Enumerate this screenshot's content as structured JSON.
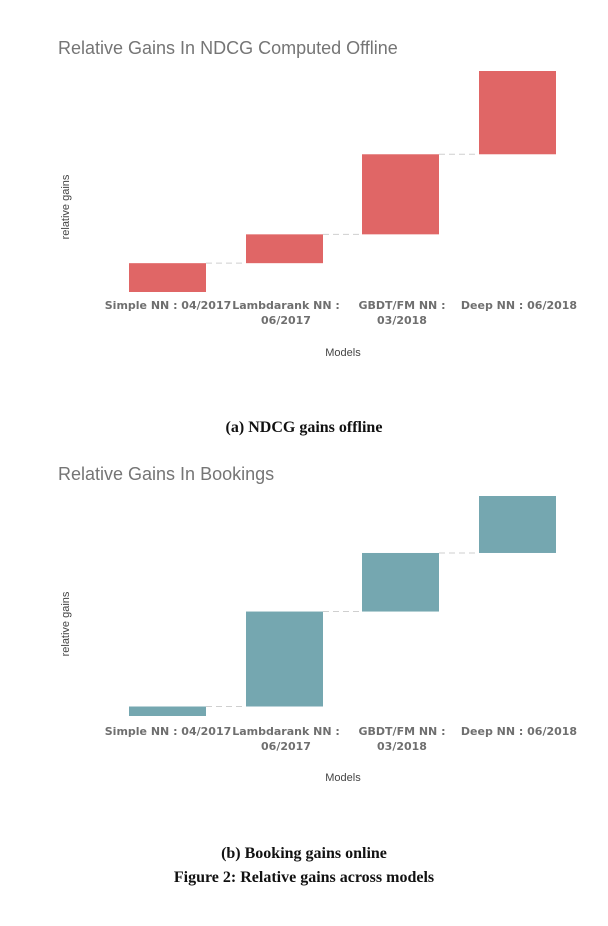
{
  "chart_data": [
    {
      "type": "bar",
      "subtype": "waterfall",
      "title": "Relative Gains In NDCG Computed Offline",
      "xlabel": "Models",
      "ylabel": "relative gains",
      "categories": [
        [
          "Simple NN : 04/2017"
        ],
        [
          "Lambdarank NN :",
          "06/2017"
        ],
        [
          "GBDT/FM NN :",
          "03/2018"
        ],
        [
          "Deep NN : 06/2018"
        ]
      ],
      "values": [
        0.9,
        0.9,
        2.5,
        2.6
      ],
      "grid": false,
      "legend": "none",
      "color": "#e06666"
    },
    {
      "type": "bar",
      "subtype": "waterfall",
      "title": "Relative Gains In Bookings",
      "xlabel": "Models",
      "ylabel": "relative gains",
      "categories": [
        [
          "Simple NN : 04/2017"
        ],
        [
          "Lambdarank NN :",
          "06/2017"
        ],
        [
          "GBDT/FM NN :",
          "03/2018"
        ],
        [
          "Deep NN : 06/2018"
        ]
      ],
      "values": [
        0.3,
        3.0,
        1.85,
        1.8
      ],
      "grid": false,
      "legend": "none",
      "color": "#75a7b0"
    }
  ],
  "captions": {
    "a": "(a) NDCG gains offline",
    "b": "(b) Booking gains online",
    "figure": "Figure 2: Relative gains across models"
  }
}
